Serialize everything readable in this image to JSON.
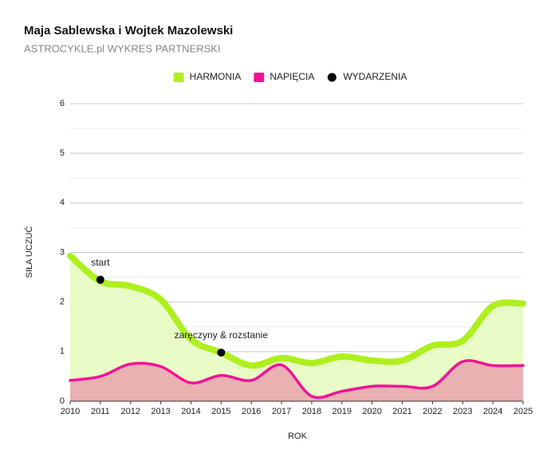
{
  "chart_data": {
    "type": "line",
    "title": "Maja Sablewska i Wojtek Mazolewski",
    "subtitle": "ASTROCYKLE.pl WYKRES PARTNERSKI",
    "x_label": "ROK",
    "y_label": "SIŁA UCZUĆ",
    "x": [
      2010,
      2011,
      2012,
      2013,
      2014,
      2015,
      2016,
      2017,
      2018,
      2019,
      2020,
      2021,
      2022,
      2023,
      2024,
      2025
    ],
    "xlim": [
      2010,
      2025
    ],
    "xticks": [
      2010,
      2011,
      2012,
      2013,
      2014,
      2015,
      2016,
      2017,
      2018,
      2019,
      2020,
      2021,
      2022,
      2023,
      2024,
      2025
    ],
    "ylim": [
      0,
      6
    ],
    "yticks": [
      0,
      1,
      2,
      3,
      4,
      5,
      6
    ],
    "grid": true,
    "minor_grid": true,
    "legend": "top",
    "series": [
      {
        "name": "HARMONIA",
        "color": "#aef01e",
        "area_color": "#e9fbc6",
        "line_width": 8,
        "values": [
          2.93,
          2.42,
          2.32,
          2.05,
          1.25,
          0.98,
          0.72,
          0.87,
          0.77,
          0.9,
          0.82,
          0.82,
          1.12,
          1.22,
          1.92,
          1.97
        ]
      },
      {
        "name": "NAPIĘCIA",
        "color": "#f0139a",
        "area_color": "#e9b1b1",
        "line_width": 3.5,
        "values": [
          0.42,
          0.5,
          0.75,
          0.7,
          0.37,
          0.52,
          0.42,
          0.73,
          0.1,
          0.2,
          0.3,
          0.3,
          0.3,
          0.8,
          0.72,
          0.72
        ]
      }
    ],
    "events": {
      "name": "WYDARZENIA",
      "color": "#000000",
      "x": [
        2011,
        2015
      ],
      "values": [
        2.45,
        0.98
      ],
      "labels": [
        "start",
        "zaręczyny & rozstanie"
      ]
    }
  }
}
